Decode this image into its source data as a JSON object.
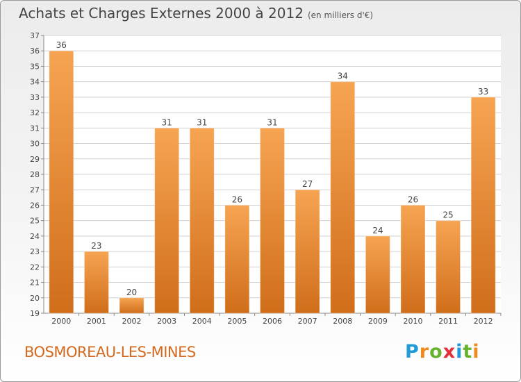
{
  "header": {
    "title": "Achats et Charges Externes 2000 à 2012",
    "unit": "(en milliers d'€)"
  },
  "footer": {
    "town": "BOSMOREAU-LES-MINES"
  },
  "logo": {
    "letters": [
      "P",
      "r",
      "o",
      "x",
      "i",
      "t",
      "i"
    ]
  },
  "colors": {
    "bar_light": "#f6a452",
    "bar_dark": "#d06e1a",
    "grid": "#d0d0d0",
    "accent": "#d2691e"
  },
  "chart_data": {
    "type": "bar",
    "title": "Achats et Charges Externes 2000 à 2012",
    "subtitle": "(en milliers d'€)",
    "xlabel": "",
    "ylabel": "",
    "categories": [
      "2000",
      "2001",
      "2002",
      "2003",
      "2004",
      "2005",
      "2006",
      "2007",
      "2008",
      "2009",
      "2010",
      "2011",
      "2012"
    ],
    "values": [
      36,
      23,
      20,
      31,
      31,
      26,
      31,
      27,
      34,
      24,
      26,
      25,
      33
    ],
    "ylim": [
      19,
      37
    ],
    "yticks": [
      19,
      20,
      21,
      22,
      23,
      24,
      25,
      26,
      27,
      28,
      29,
      30,
      31,
      32,
      33,
      34,
      35,
      36,
      37
    ],
    "grid": true,
    "legend": "none"
  }
}
